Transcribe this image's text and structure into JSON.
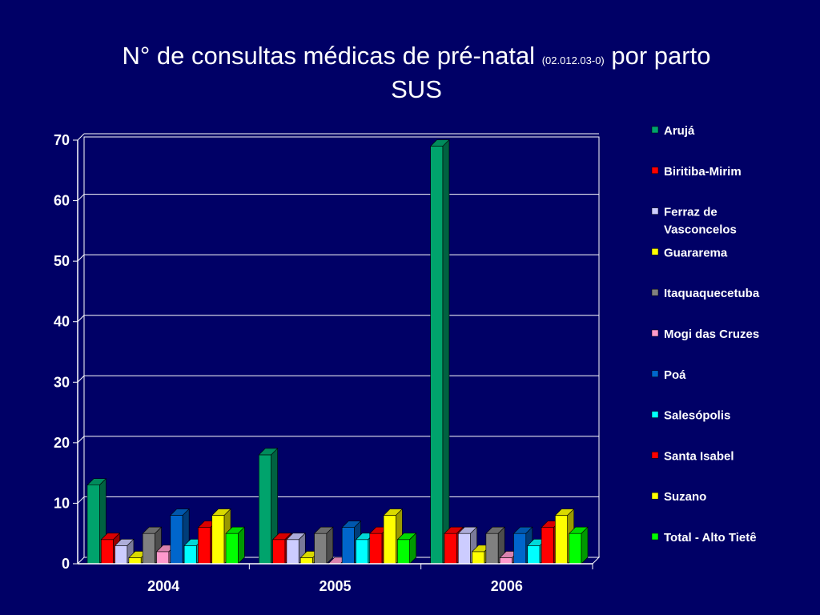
{
  "title": {
    "main": "N° de consultas médicas de pré-natal",
    "code": "(02.012.03-0)",
    "suffix": "por parto",
    "line2": "SUS"
  },
  "chart_data": {
    "type": "bar",
    "categories": [
      "2004",
      "2005",
      "2006"
    ],
    "ylim": [
      0,
      70
    ],
    "yticks": [
      0,
      10,
      20,
      30,
      40,
      50,
      60,
      70
    ],
    "grid": true,
    "legend_position": "right",
    "series": [
      {
        "name": "Arujá",
        "color": "#00A36C",
        "values": [
          13,
          18,
          69
        ]
      },
      {
        "name": "Biritiba-Mirim",
        "color": "#FF0000",
        "values": [
          4,
          4,
          5
        ]
      },
      {
        "name": "Ferraz de Vasconcelos",
        "color": "#CCCCFF",
        "values": [
          3,
          4,
          5
        ]
      },
      {
        "name": "Guararema",
        "color": "#FFFF00",
        "values": [
          1,
          1,
          2
        ]
      },
      {
        "name": "Itaquaquecetuba",
        "color": "#808080",
        "values": [
          5,
          5,
          5
        ]
      },
      {
        "name": "Mogi das Cruzes",
        "color": "#FF99CC",
        "values": [
          2,
          0,
          1
        ]
      },
      {
        "name": "Poá",
        "color": "#0066CC",
        "values": [
          8,
          6,
          5
        ]
      },
      {
        "name": "Salesópolis",
        "color": "#00FFFF",
        "values": [
          3,
          4,
          3
        ]
      },
      {
        "name": "Santa Isabel",
        "color": "#FF0000",
        "values": [
          6,
          5,
          6
        ]
      },
      {
        "name": "Suzano",
        "color": "#FFFF00",
        "values": [
          8,
          8,
          8
        ]
      },
      {
        "name": "Total - Alto Tietê",
        "color": "#00FF00",
        "values": [
          5,
          4,
          5
        ]
      }
    ]
  }
}
